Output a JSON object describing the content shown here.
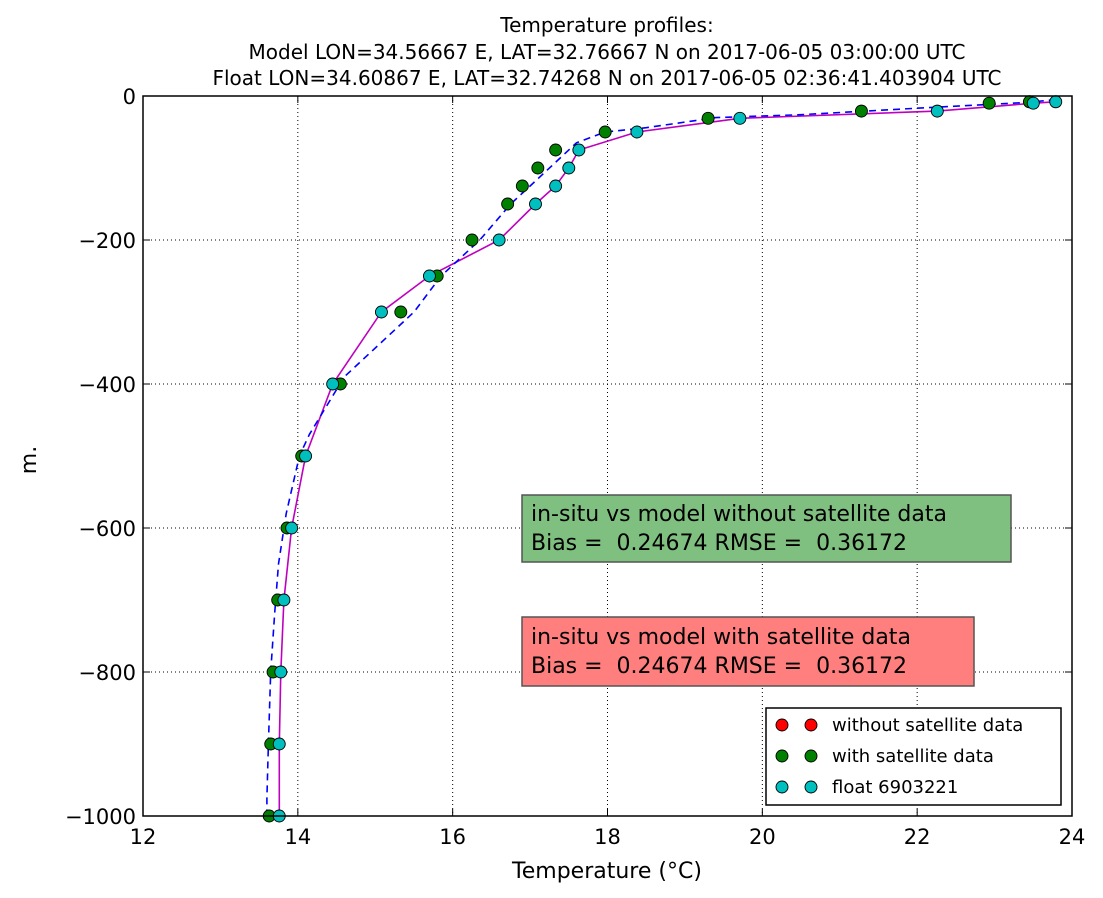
{
  "chart_data": {
    "type": "scatter",
    "title_lines": [
      "Temperature profiles:",
      "Model LON=34.56667 E, LAT=32.76667 N on 2017-06-05 03:00:00 UTC",
      "Float LON=34.60867 E, LAT=32.74268 N on 2017-06-05 02:36:41.403904 UTC"
    ],
    "xlabel": "Temperature (°C)",
    "ylabel": "m.",
    "xlim": [
      12,
      24
    ],
    "ylim": [
      -1000,
      0
    ],
    "xticks": [
      12,
      14,
      16,
      18,
      20,
      22,
      24
    ],
    "yticks": [
      0,
      -200,
      -400,
      -600,
      -800,
      -1000
    ],
    "grid": true,
    "legend_position": "lower-right",
    "series": [
      {
        "name": "without satellite data",
        "kind": "markers",
        "color": "#ff0000",
        "points": []
      },
      {
        "name": "with satellite data",
        "kind": "markers",
        "color": "#008000",
        "points": [
          [
            23.45,
            -8
          ],
          [
            22.93,
            -10
          ],
          [
            21.28,
            -21
          ],
          [
            19.3,
            -31
          ],
          [
            17.97,
            -50
          ],
          [
            17.33,
            -75
          ],
          [
            17.1,
            -100
          ],
          [
            16.9,
            -125
          ],
          [
            16.71,
            -150
          ],
          [
            16.25,
            -200
          ],
          [
            15.8,
            -250
          ],
          [
            15.33,
            -300
          ],
          [
            14.55,
            -400
          ],
          [
            14.05,
            -500
          ],
          [
            13.86,
            -600
          ],
          [
            13.74,
            -700
          ],
          [
            13.68,
            -800
          ],
          [
            13.65,
            -900
          ],
          [
            13.63,
            -1000
          ]
        ]
      },
      {
        "name": "float 6903221",
        "kind": "markers",
        "color": "#00bfbf",
        "points": [
          [
            23.79,
            -8
          ],
          [
            23.5,
            -10
          ],
          [
            22.26,
            -21
          ],
          [
            19.71,
            -31
          ],
          [
            18.38,
            -50
          ],
          [
            17.63,
            -75
          ],
          [
            17.5,
            -100
          ],
          [
            17.33,
            -125
          ],
          [
            17.07,
            -150
          ],
          [
            16.6,
            -200
          ],
          [
            15.7,
            -250
          ],
          [
            15.08,
            -300
          ],
          [
            14.45,
            -400
          ],
          [
            14.1,
            -500
          ],
          [
            13.92,
            -600
          ],
          [
            13.82,
            -700
          ],
          [
            13.78,
            -800
          ],
          [
            13.76,
            -900
          ],
          [
            13.76,
            -1000
          ]
        ]
      },
      {
        "name": "",
        "kind": "line",
        "style": "solid",
        "color": "#bf00bf",
        "points": [
          [
            23.79,
            -8
          ],
          [
            23.5,
            -10
          ],
          [
            22.26,
            -21
          ],
          [
            19.71,
            -31
          ],
          [
            18.38,
            -50
          ],
          [
            17.63,
            -75
          ],
          [
            17.5,
            -100
          ],
          [
            17.33,
            -125
          ],
          [
            17.07,
            -150
          ],
          [
            16.6,
            -200
          ],
          [
            15.7,
            -250
          ],
          [
            15.08,
            -300
          ],
          [
            14.45,
            -400
          ],
          [
            14.1,
            -500
          ],
          [
            13.92,
            -600
          ],
          [
            13.82,
            -700
          ],
          [
            13.78,
            -800
          ],
          [
            13.76,
            -900
          ],
          [
            13.76,
            -1000
          ]
        ]
      },
      {
        "name": "",
        "kind": "line",
        "style": "dashed",
        "color": "#0000ff",
        "points": [
          [
            23.79,
            -5
          ],
          [
            23.4,
            -9
          ],
          [
            22.0,
            -17
          ],
          [
            20.5,
            -26
          ],
          [
            19.4,
            -30
          ],
          [
            18.5,
            -44
          ],
          [
            17.97,
            -50
          ],
          [
            17.6,
            -65
          ],
          [
            17.3,
            -95
          ],
          [
            17.0,
            -125
          ],
          [
            16.75,
            -150
          ],
          [
            16.35,
            -200
          ],
          [
            15.85,
            -250
          ],
          [
            15.5,
            -300
          ],
          [
            14.6,
            -390
          ],
          [
            14.15,
            -470
          ],
          [
            14.02,
            -500
          ],
          [
            13.85,
            -580
          ],
          [
            13.75,
            -650
          ],
          [
            13.7,
            -720
          ],
          [
            13.65,
            -800
          ],
          [
            13.62,
            -900
          ],
          [
            13.6,
            -975
          ],
          [
            13.6,
            -1000
          ]
        ]
      }
    ],
    "annotations": [
      {
        "name": "annotation-without-satellite",
        "lines": [
          "in-situ vs model without satellite data",
          "Bias =  0.24674 RMSE =  0.36172"
        ],
        "color": "#7fbf7f"
      },
      {
        "name": "annotation-with-satellite",
        "lines": [
          "in-situ vs model with satellite data",
          "Bias =  0.24674 RMSE =  0.36172"
        ],
        "color": "#ff7f7f"
      }
    ]
  }
}
